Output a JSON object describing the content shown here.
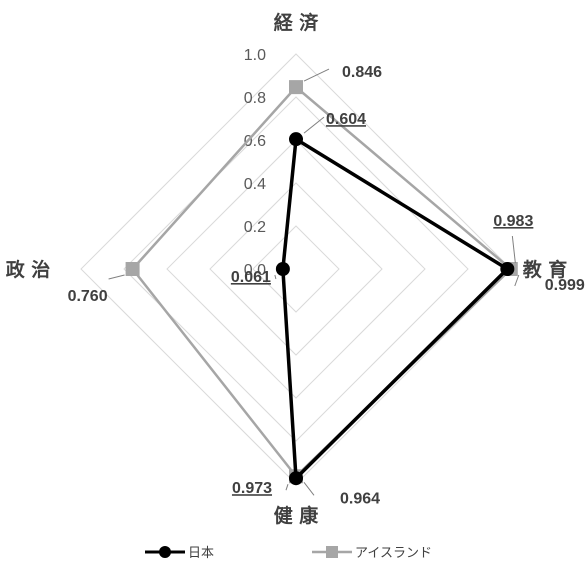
{
  "chart_data": {
    "type": "radar",
    "axes": [
      "経 済",
      "教 育",
      "健 康",
      "政 治"
    ],
    "ticks": [
      "0.0",
      "0.2",
      "0.4",
      "0.6",
      "0.8",
      "1.0"
    ],
    "range": [
      0,
      1
    ],
    "grid": true,
    "legend_position": "bottom",
    "series": [
      {
        "name": "日本",
        "color": "#000000",
        "marker": "circle",
        "values": [
          0.604,
          0.983,
          0.973,
          0.061
        ],
        "labels": [
          "0.604",
          "0.983",
          "0.973",
          "0.061"
        ],
        "underlined": true
      },
      {
        "name": "アイスランド",
        "color": "#a6a6a6",
        "marker": "square",
        "values": [
          0.846,
          0.999,
          0.964,
          0.76
        ],
        "labels": [
          "0.846",
          "0.999",
          "0.964",
          "0.760"
        ],
        "underlined": false
      }
    ]
  }
}
